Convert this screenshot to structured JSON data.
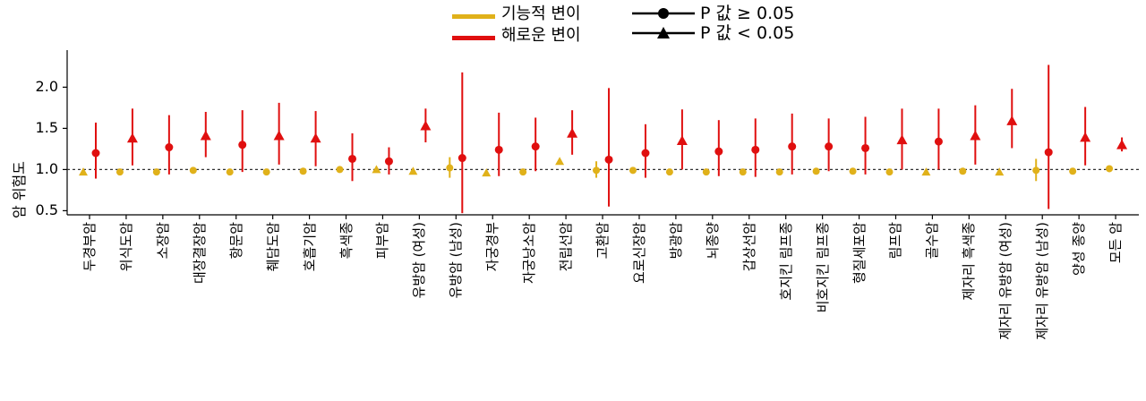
{
  "legend": {
    "functional_label": "기능적 변이",
    "harmful_label": "해로운 변이",
    "functional_color": "#e0b11a",
    "harmful_color": "#e00f0f",
    "p_ge_label": "P 값 ≥ 0.05",
    "p_lt_label": "P 값 < 0.05"
  },
  "chart_data": {
    "type": "scatter",
    "ylabel": "암 위험도",
    "ylim": [
      0.45,
      2.45
    ],
    "yticks": [
      0.5,
      1.0,
      1.5,
      2.0
    ],
    "ytick_labels": [
      "0.5",
      "1.0",
      "1.5",
      "2.0"
    ],
    "reference_line": 1.0,
    "categories": [
      "두경부암",
      "위식도암",
      "소장암",
      "대장결장암",
      "항문암",
      "췌담도암",
      "호흡기암",
      "흑색종",
      "피부암",
      "유방암 (여성)",
      "유방암 (남성)",
      "자궁경부",
      "자궁낭소암",
      "전립선암",
      "고환암",
      "요로신장암",
      "방광암",
      "뇌종양",
      "갑상선암",
      "호지킨 림프종",
      "비호지킨 림프종",
      "형질세포암",
      "림프암",
      "골수암",
      "제자리 흑색종",
      "제자리 유방암 (여성)",
      "제자리 유방암 (남성)",
      "양성 종양",
      "모든 암"
    ],
    "series": [
      {
        "name": "기능적 변이",
        "color": "#e0b11a",
        "values": [
          0.97,
          0.97,
          0.97,
          0.99,
          0.97,
          0.97,
          0.98,
          1.0,
          1.0,
          0.98,
          1.02,
          0.96,
          0.97,
          1.1,
          0.99,
          0.99,
          0.97,
          0.97,
          0.97,
          0.97,
          0.98,
          0.98,
          0.97,
          0.97,
          0.98,
          0.97,
          0.99,
          0.98,
          1.01
        ],
        "lower": [
          0.93,
          0.93,
          0.93,
          0.97,
          0.93,
          0.94,
          0.95,
          0.97,
          0.97,
          0.95,
          0.9,
          0.93,
          0.94,
          1.07,
          0.9,
          0.96,
          0.95,
          0.94,
          0.94,
          0.94,
          0.96,
          0.95,
          0.94,
          0.94,
          0.96,
          0.94,
          0.86,
          0.95,
          0.99
        ],
        "upper": [
          1.01,
          1.01,
          1.01,
          1.01,
          1.01,
          1.01,
          1.01,
          1.03,
          1.03,
          1.01,
          1.15,
          0.99,
          1.0,
          1.13,
          1.1,
          1.02,
          0.99,
          1.0,
          1.0,
          1.0,
          1.0,
          1.01,
          1.0,
          1.0,
          1.0,
          1.0,
          1.13,
          1.01,
          1.03
        ],
        "significant": [
          true,
          false,
          false,
          false,
          false,
          false,
          false,
          false,
          true,
          true,
          false,
          true,
          false,
          true,
          false,
          false,
          false,
          false,
          false,
          false,
          false,
          false,
          false,
          true,
          false,
          true,
          false,
          false,
          false
        ]
      },
      {
        "name": "해로운 변이",
        "color": "#e00f0f",
        "values": [
          1.2,
          1.38,
          1.27,
          1.41,
          1.3,
          1.41,
          1.38,
          1.13,
          1.1,
          1.53,
          1.14,
          1.24,
          1.28,
          1.44,
          1.12,
          1.2,
          1.35,
          1.22,
          1.24,
          1.28,
          1.28,
          1.26,
          1.36,
          1.34,
          1.41,
          1.59,
          1.21,
          1.39,
          1.3
        ],
        "lower": [
          0.89,
          1.05,
          0.94,
          1.15,
          0.97,
          1.06,
          1.04,
          0.86,
          0.94,
          1.33,
          0.47,
          0.92,
          0.98,
          1.18,
          0.55,
          0.9,
          1.0,
          0.92,
          0.91,
          0.94,
          0.98,
          0.94,
          1.0,
          1.0,
          1.06,
          1.26,
          0.52,
          1.05,
          1.22
        ],
        "upper": [
          1.57,
          1.74,
          1.66,
          1.7,
          1.72,
          1.81,
          1.71,
          1.44,
          1.27,
          1.74,
          2.18,
          1.69,
          1.63,
          1.72,
          1.99,
          1.55,
          1.73,
          1.6,
          1.62,
          1.68,
          1.62,
          1.64,
          1.74,
          1.74,
          1.78,
          1.98,
          2.27,
          1.76,
          1.39
        ],
        "significant": [
          false,
          true,
          false,
          true,
          false,
          true,
          true,
          false,
          false,
          true,
          false,
          false,
          false,
          true,
          false,
          false,
          true,
          false,
          false,
          false,
          false,
          false,
          true,
          false,
          true,
          true,
          false,
          true,
          true
        ]
      }
    ]
  }
}
